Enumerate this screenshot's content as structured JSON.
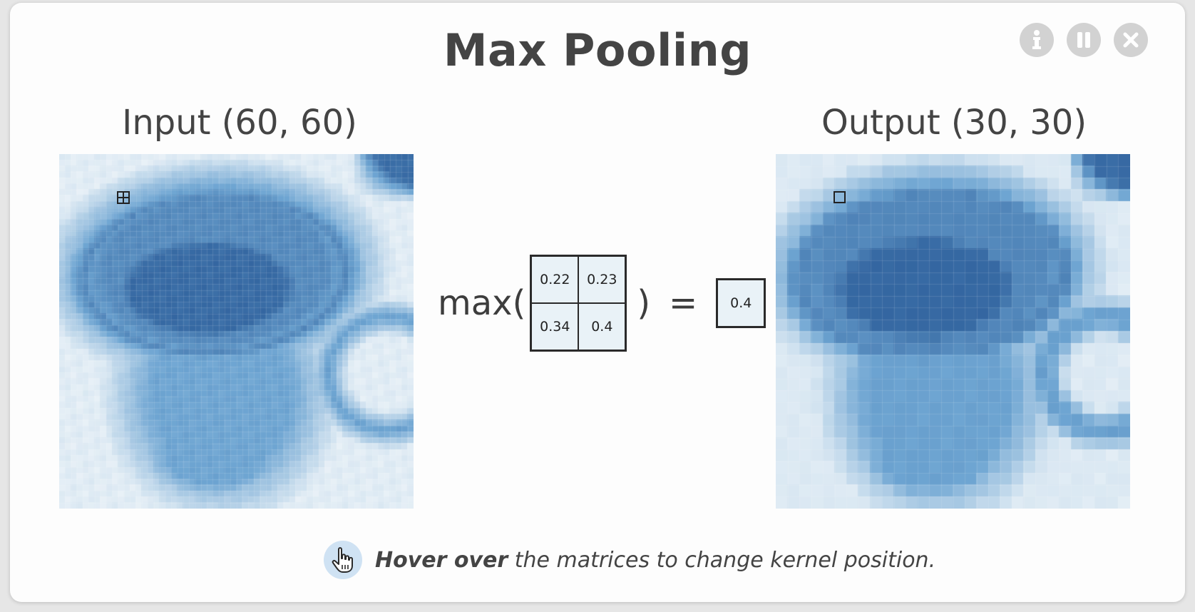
{
  "title": "Max Pooling",
  "controls": [
    {
      "name": "info",
      "icon": "info-icon"
    },
    {
      "name": "pause",
      "icon": "pause-icon"
    },
    {
      "name": "close",
      "icon": "close-icon"
    }
  ],
  "input": {
    "title": "Input (60, 60)"
  },
  "output": {
    "title": "Output (30, 30)"
  },
  "equation": {
    "prefix": "max(",
    "values": [
      "0.22",
      "0.23",
      "0.34",
      "0.4"
    ],
    "suffix": ")",
    "equals": "=",
    "result": "0.4"
  },
  "hint": {
    "icon": "pointer-hand-icon",
    "bold": "Hover over",
    "text": " the matrices to change kernel position."
  },
  "colors": {
    "accent": "#2f6ba8",
    "low": "#e8f1f6",
    "hint_icon_bg": "#cfe2f3"
  }
}
